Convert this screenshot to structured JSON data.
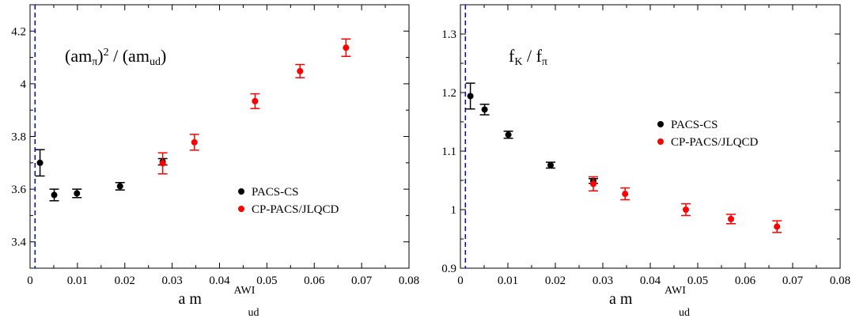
{
  "colors": {
    "pacs": "#000000",
    "cp": "#ff0000",
    "vline": "#0000ff",
    "frame": "#000000"
  },
  "chart_data": [
    {
      "type": "scatter",
      "title": "",
      "panel_label": {
        "main": "(am",
        "sub1": "π",
        "close": ")",
        "sup": "2",
        "mid": " / (am",
        "sub2": "ud",
        "end": ")"
      },
      "xlabel": {
        "main": "a m",
        "sup": "AWI",
        "sub": "ud"
      },
      "ylabel": "",
      "xlim": [
        0,
        0.08
      ],
      "ylim": [
        3.3,
        4.3
      ],
      "xticks": [
        0,
        0.01,
        0.02,
        0.03,
        0.04,
        0.05,
        0.06,
        0.07,
        0.08
      ],
      "xtick_labels": [
        "0",
        "0.01",
        "0.02",
        "0.03",
        "0.04",
        "0.05",
        "0.06",
        "0.07",
        "0.08"
      ],
      "yticks": [
        3.4,
        3.6,
        3.8,
        4.0,
        4.2
      ],
      "ytick_labels": [
        "3.4",
        "3.6",
        "3.8",
        "4",
        "4.2"
      ],
      "vline_x": 0.00105,
      "legend_position": "center-right",
      "series": [
        {
          "name": "PACS-CS",
          "color": "#000000",
          "points": [
            {
              "x": 0.0021,
              "y": 3.7,
              "err": 0.05
            },
            {
              "x": 0.0051,
              "y": 3.578,
              "err": 0.022
            },
            {
              "x": 0.0099,
              "y": 3.584,
              "err": 0.016
            },
            {
              "x": 0.019,
              "y": 3.611,
              "err": 0.014
            },
            {
              "x": 0.028,
              "y": 3.704,
              "err": 0.012
            }
          ]
        },
        {
          "name": "CP-PACS/JLQCD",
          "color": "#ff0000",
          "points": [
            {
              "x": 0.028,
              "y": 3.698,
              "err": 0.04
            },
            {
              "x": 0.0347,
              "y": 3.778,
              "err": 0.03
            },
            {
              "x": 0.0475,
              "y": 3.934,
              "err": 0.028
            },
            {
              "x": 0.057,
              "y": 4.048,
              "err": 0.025
            },
            {
              "x": 0.0667,
              "y": 4.137,
              "err": 0.033
            }
          ]
        }
      ]
    },
    {
      "type": "scatter",
      "title": "",
      "panel_label": {
        "main": "f",
        "sub1": "K",
        "mid": " / f",
        "sub2": "π"
      },
      "xlabel": {
        "main": "a m",
        "sup": "AWI",
        "sub": "ud"
      },
      "ylabel": "",
      "xlim": [
        0,
        0.08
      ],
      "ylim": [
        0.9,
        1.35
      ],
      "xticks": [
        0,
        0.01,
        0.02,
        0.03,
        0.04,
        0.05,
        0.06,
        0.07,
        0.08
      ],
      "xtick_labels": [
        "0",
        "0.01",
        "0.02",
        "0.03",
        "0.04",
        "0.05",
        "0.06",
        "0.07",
        "0.08"
      ],
      "yticks": [
        0.9,
        1.0,
        1.1,
        1.2,
        1.3
      ],
      "ytick_labels": [
        "0.9",
        "1",
        "1.1",
        "1.2",
        "1.3"
      ],
      "vline_x": 0.00105,
      "legend_position": "center-right",
      "series": [
        {
          "name": "PACS-CS",
          "color": "#000000",
          "points": [
            {
              "x": 0.0021,
              "y": 1.194,
              "err": 0.022
            },
            {
              "x": 0.0051,
              "y": 1.171,
              "err": 0.009
            },
            {
              "x": 0.0101,
              "y": 1.128,
              "err": 0.006
            },
            {
              "x": 0.019,
              "y": 1.076,
              "err": 0.005
            },
            {
              "x": 0.028,
              "y": 1.049,
              "err": 0.004
            }
          ]
        },
        {
          "name": "CP-PACS/JLQCD",
          "color": "#ff0000",
          "points": [
            {
              "x": 0.028,
              "y": 1.044,
              "err": 0.012
            },
            {
              "x": 0.0347,
              "y": 1.027,
              "err": 0.01
            },
            {
              "x": 0.0475,
              "y": 1.0,
              "err": 0.01
            },
            {
              "x": 0.057,
              "y": 0.984,
              "err": 0.008
            },
            {
              "x": 0.0667,
              "y": 0.971,
              "err": 0.01
            }
          ]
        }
      ]
    }
  ]
}
